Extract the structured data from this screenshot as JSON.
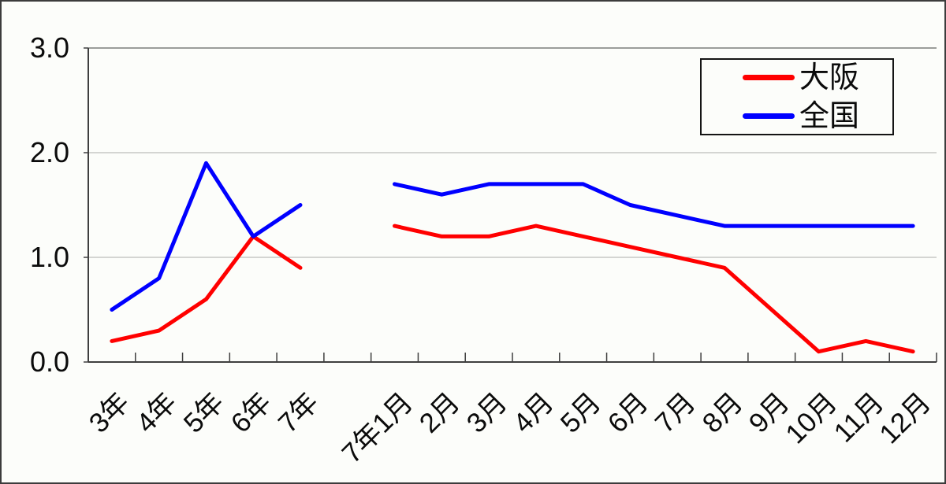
{
  "chart_data": {
    "type": "line",
    "title": "",
    "xlabel": "",
    "ylabel": "",
    "ylim": [
      0,
      3
    ],
    "grid": true,
    "legend_position": "top-right",
    "yticks": [
      {
        "value": 0,
        "label": "0.0"
      },
      {
        "value": 1,
        "label": "1.0"
      },
      {
        "value": 2,
        "label": "2.0"
      },
      {
        "value": 3,
        "label": "3.0"
      }
    ],
    "categories": [
      "3年",
      "4年",
      "5年",
      "6年",
      "7年",
      "",
      "7年1月",
      "2月",
      "3月",
      "4月",
      "5月",
      "6月",
      "7月",
      "8月",
      "9月",
      "10月",
      "11月",
      "12月"
    ],
    "series": [
      {
        "name": "大阪",
        "color": "#ff0000",
        "values": [
          0.2,
          0.3,
          0.6,
          1.2,
          0.9,
          null,
          1.3,
          1.2,
          1.2,
          1.3,
          1.2,
          1.1,
          1.0,
          0.9,
          0.5,
          0.1,
          0.2,
          0.1
        ]
      },
      {
        "name": "全国",
        "color": "#0000ff",
        "values": [
          0.5,
          0.8,
          1.9,
          1.2,
          1.5,
          null,
          1.7,
          1.6,
          1.7,
          1.7,
          1.7,
          1.5,
          1.4,
          1.3,
          1.3,
          1.3,
          1.3,
          1.3
        ]
      }
    ],
    "style": {
      "axis_color": "#3f3f3f",
      "grid_color": "#abadaa",
      "top_border_color": "#9b9d9a",
      "background": "#fcfdfa",
      "line_width": 5
    }
  }
}
